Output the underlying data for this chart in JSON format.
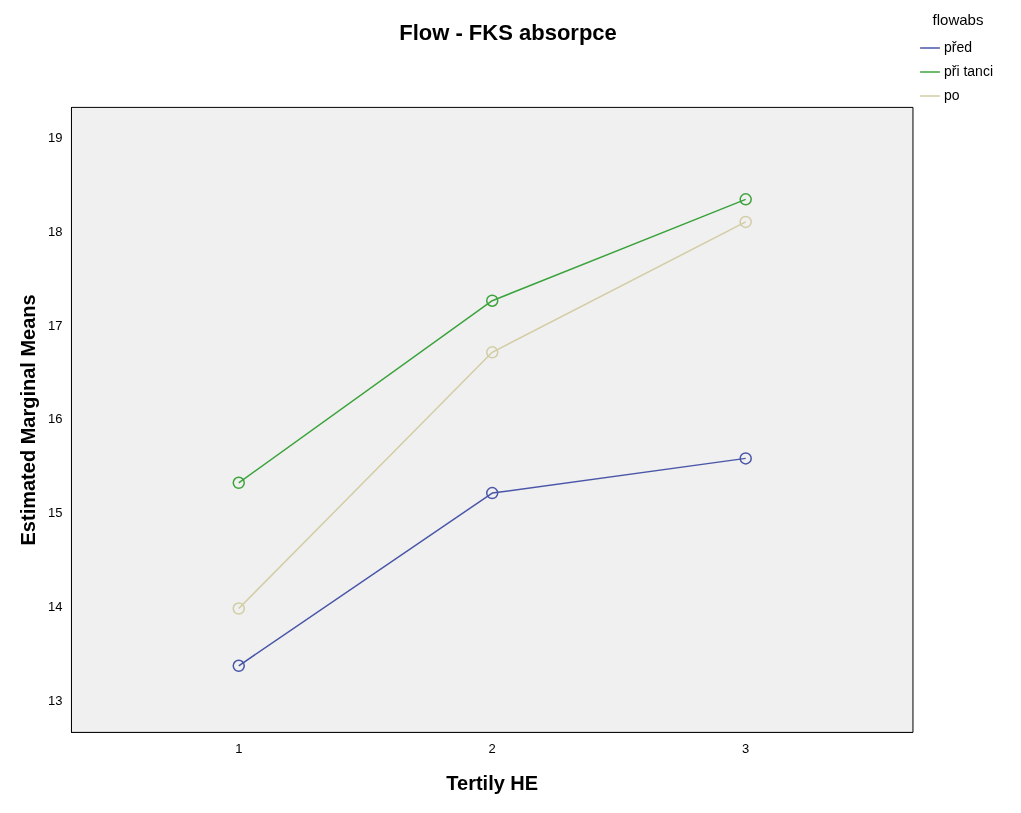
{
  "chart_data": {
    "type": "line",
    "title": "Flow - FKS absorpce",
    "xlabel": "Tertily HE",
    "ylabel": "Estimated Marginal Means",
    "legend_title": "flowabs",
    "x": [
      1,
      2,
      3
    ],
    "xlim": [
      0.34,
      3.66
    ],
    "xticks": [
      1,
      2,
      3
    ],
    "ylim": [
      12.67,
      19.33
    ],
    "yticks": [
      13,
      14,
      15,
      16,
      17,
      18,
      19
    ],
    "grid": false,
    "legend": "top right",
    "marker": "circle",
    "line_style": "solid",
    "series": [
      {
        "name": "před",
        "color": "#4a56a8",
        "values": [
          13.38,
          15.22,
          15.59
        ]
      },
      {
        "name": "při tanci",
        "color": "#3ca33c",
        "values": [
          15.33,
          17.27,
          18.35
        ]
      },
      {
        "name": "po",
        "color": "#d2cda4",
        "values": [
          13.99,
          16.72,
          18.11
        ]
      }
    ]
  }
}
